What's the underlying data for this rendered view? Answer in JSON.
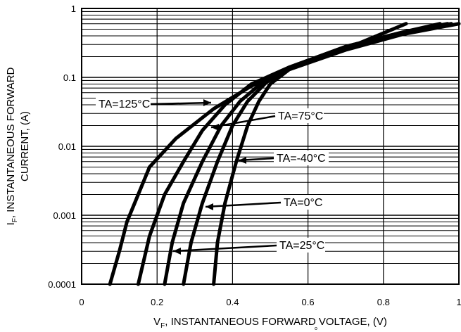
{
  "chart_data": {
    "type": "line",
    "title": "",
    "xlabel": {
      "main": "V",
      "sub": "F",
      "rest": ", INSTANTANEOUS FORWARD VOLTAGE, (V)"
    },
    "ylabel": {
      "main": "I",
      "sub": "F",
      "line1_rest": ", INSTANTANEOUS FORWARD",
      "line2": "CURRENT, (A)"
    },
    "xlim": [
      0,
      1
    ],
    "ylim": [
      0.0001,
      1
    ],
    "yscale": "log",
    "grid": true,
    "x_ticks": [
      {
        "value": 0,
        "label": "0"
      },
      {
        "value": 0.2,
        "label": "0.2"
      },
      {
        "value": 0.4,
        "label": "0.4"
      },
      {
        "value": 0.6,
        "label": "0.6"
      },
      {
        "value": 0.8,
        "label": "0.8"
      },
      {
        "value": 1,
        "label": "1"
      }
    ],
    "y_ticks": [
      {
        "value": 0.0001,
        "label": "0.0001"
      },
      {
        "value": 0.001,
        "label": "0.001"
      },
      {
        "value": 0.01,
        "label": "0.01"
      },
      {
        "value": 0.1,
        "label": "0.1"
      },
      {
        "value": 1,
        "label": "1"
      }
    ],
    "series": [
      {
        "name": "TA=125°C",
        "x": [
          0.075,
          0.1,
          0.12,
          0.15,
          0.18,
          0.25,
          0.35,
          0.45,
          0.55,
          0.7,
          0.85,
          1.0
        ],
        "y": [
          0.0001,
          0.0003,
          0.0008,
          0.002,
          0.005,
          0.013,
          0.035,
          0.075,
          0.13,
          0.25,
          0.42,
          0.6
        ]
      },
      {
        "name": "TA=75°C",
        "x": [
          0.15,
          0.18,
          0.22,
          0.27,
          0.32,
          0.38,
          0.45,
          0.55,
          0.7,
          0.85,
          0.98
        ],
        "y": [
          0.0001,
          0.0005,
          0.002,
          0.006,
          0.017,
          0.04,
          0.08,
          0.14,
          0.27,
          0.45,
          0.6
        ]
      },
      {
        "name": "TA=25°C",
        "x": [
          0.22,
          0.24,
          0.27,
          0.32,
          0.37,
          0.42,
          0.48,
          0.55,
          0.7,
          0.85,
          0.97
        ],
        "y": [
          0.0001,
          0.0004,
          0.0015,
          0.006,
          0.02,
          0.045,
          0.085,
          0.14,
          0.28,
          0.45,
          0.6
        ]
      },
      {
        "name": "TA=0°C",
        "x": [
          0.27,
          0.29,
          0.32,
          0.36,
          0.4,
          0.44,
          0.49,
          0.55,
          0.7,
          0.85,
          0.95
        ],
        "y": [
          0.0001,
          0.0004,
          0.0015,
          0.006,
          0.02,
          0.045,
          0.085,
          0.14,
          0.28,
          0.45,
          0.6
        ]
      },
      {
        "name": "TA=-40°C",
        "x": [
          0.35,
          0.36,
          0.38,
          0.41,
          0.44,
          0.47,
          0.5,
          0.55,
          0.7,
          0.86
        ],
        "y": [
          0.0001,
          0.0004,
          0.0015,
          0.006,
          0.02,
          0.045,
          0.08,
          0.13,
          0.26,
          0.6
        ]
      }
    ],
    "annotations": [
      {
        "text": "TA=125°C",
        "series": "TA=125°C"
      },
      {
        "text": "TA=75°C",
        "series": "TA=75°C"
      },
      {
        "text": "TA=-40°C",
        "series": "TA=-40°C"
      },
      {
        "text": "TA=0°C",
        "series": "TA=0°C"
      },
      {
        "text": "TA=25°C",
        "series": "TA=25°C"
      }
    ],
    "stray_mark": "o"
  }
}
